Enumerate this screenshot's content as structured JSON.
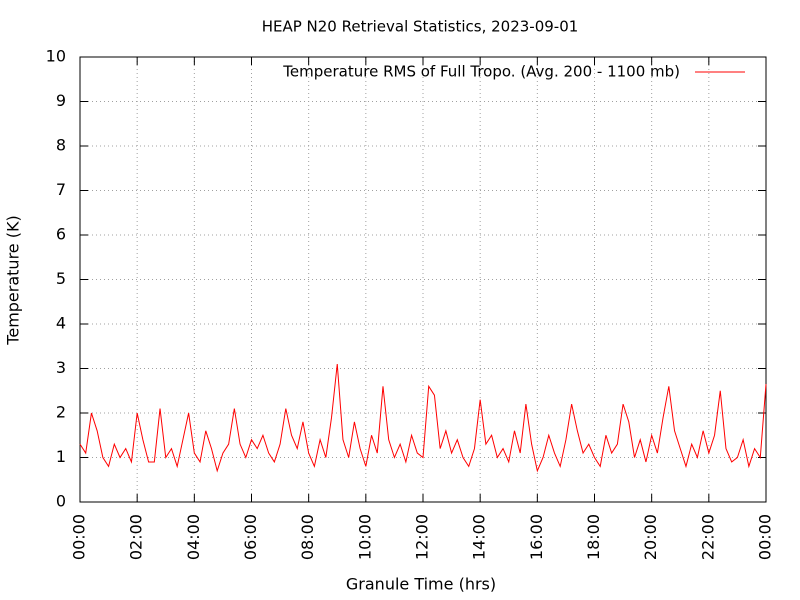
{
  "chart_data": {
    "type": "line",
    "title": "HEAP N20 Retrieval Statistics, 2023-09-01",
    "xlabel": "Granule Time (hrs)",
    "ylabel": "Temperature (K)",
    "legend": "top right",
    "grid": true,
    "xlim": [
      0,
      24
    ],
    "ylim": [
      0,
      10
    ],
    "yticks": [
      0,
      1,
      2,
      3,
      4,
      5,
      6,
      7,
      8,
      9,
      10
    ],
    "xticks": [
      {
        "value": 0,
        "label": "00:00"
      },
      {
        "value": 2,
        "label": "02:00"
      },
      {
        "value": 4,
        "label": "04:00"
      },
      {
        "value": 6,
        "label": "06:00"
      },
      {
        "value": 8,
        "label": "08:00"
      },
      {
        "value": 10,
        "label": "10:00"
      },
      {
        "value": 12,
        "label": "12:00"
      },
      {
        "value": 14,
        "label": "14:00"
      },
      {
        "value": 16,
        "label": "16:00"
      },
      {
        "value": 18,
        "label": "18:00"
      },
      {
        "value": 20,
        "label": "20:00"
      },
      {
        "value": 22,
        "label": "22:00"
      },
      {
        "value": 24,
        "label": "00:00"
      }
    ],
    "x": [
      0,
      0.2,
      0.4,
      0.6,
      0.8,
      1,
      1.2,
      1.4,
      1.6,
      1.8,
      2,
      2.2,
      2.4,
      2.6,
      2.8,
      3,
      3.2,
      3.4,
      3.6,
      3.8,
      4,
      4.2,
      4.4,
      4.6,
      4.8,
      5,
      5.2,
      5.4,
      5.6,
      5.8,
      6,
      6.2,
      6.4,
      6.6,
      6.8,
      7,
      7.2,
      7.4,
      7.6,
      7.8,
      8,
      8.2,
      8.4,
      8.6,
      8.8,
      9,
      9.2,
      9.4,
      9.6,
      9.8,
      10,
      10.2,
      10.4,
      10.6,
      10.8,
      11,
      11.2,
      11.4,
      11.6,
      11.8,
      12,
      12.2,
      12.4,
      12.6,
      12.8,
      13,
      13.2,
      13.4,
      13.6,
      13.8,
      14,
      14.2,
      14.4,
      14.6,
      14.8,
      15,
      15.2,
      15.4,
      15.6,
      15.8,
      16,
      16.2,
      16.4,
      16.6,
      16.8,
      17,
      17.2,
      17.4,
      17.6,
      17.8,
      18,
      18.2,
      18.4,
      18.6,
      18.8,
      19,
      19.2,
      19.4,
      19.6,
      19.8,
      20,
      20.2,
      20.4,
      20.6,
      20.8,
      21,
      21.2,
      21.4,
      21.6,
      21.8,
      22,
      22.2,
      22.4,
      22.6,
      22.8,
      23,
      23.2,
      23.4,
      23.6,
      23.8,
      24
    ],
    "series": [
      {
        "name": "Temperature RMS of Full Tropo. (Avg. 200 - 1100 mb)",
        "color": "#ff0000",
        "values": [
          1.3,
          1.1,
          2.0,
          1.6,
          1.0,
          0.8,
          1.3,
          1.0,
          1.2,
          0.9,
          2.0,
          1.4,
          0.9,
          0.9,
          2.1,
          1.0,
          1.2,
          0.8,
          1.4,
          2.0,
          1.1,
          0.9,
          1.6,
          1.2,
          0.7,
          1.1,
          1.3,
          2.1,
          1.3,
          1.0,
          1.4,
          1.2,
          1.5,
          1.1,
          0.9,
          1.3,
          2.1,
          1.5,
          1.2,
          1.8,
          1.1,
          0.8,
          1.4,
          1.0,
          1.9,
          3.1,
          1.4,
          1.0,
          1.8,
          1.2,
          0.8,
          1.5,
          1.1,
          2.6,
          1.4,
          1.0,
          1.3,
          0.9,
          1.5,
          1.1,
          1.0,
          2.6,
          2.4,
          1.2,
          1.6,
          1.1,
          1.4,
          1.0,
          0.8,
          1.2,
          2.3,
          1.3,
          1.5,
          1.0,
          1.2,
          0.9,
          1.6,
          1.1,
          2.2,
          1.3,
          0.7,
          1.0,
          1.5,
          1.1,
          0.8,
          1.4,
          2.2,
          1.6,
          1.1,
          1.3,
          1.0,
          0.8,
          1.5,
          1.1,
          1.3,
          2.2,
          1.8,
          1.0,
          1.4,
          0.9,
          1.5,
          1.1,
          1.9,
          2.6,
          1.6,
          1.2,
          0.8,
          1.3,
          1.0,
          1.6,
          1.1,
          1.5,
          2.5,
          1.2,
          0.9,
          1.0,
          1.4,
          0.8,
          1.2,
          1.0,
          2.65
        ]
      }
    ]
  }
}
